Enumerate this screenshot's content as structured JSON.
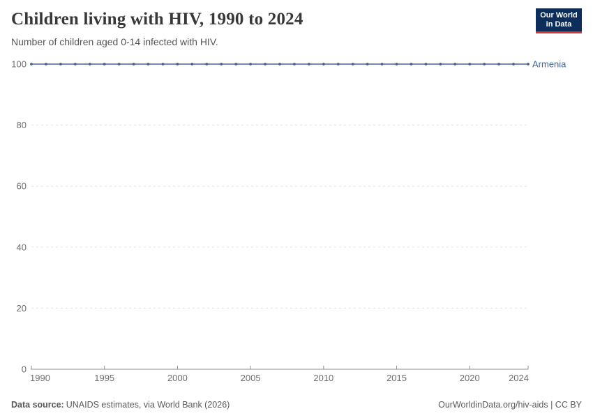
{
  "header": {
    "title": "Children living with HIV, 1990 to 2024",
    "subtitle": "Number of children aged 0-14 infected with HIV.",
    "logo": {
      "line1": "Our World",
      "line2": "in Data",
      "bg_color": "#0d2e5a",
      "accent_color": "#d8352a"
    }
  },
  "chart_data": {
    "type": "line",
    "title": "Children living with HIV, 1990 to 2024",
    "subtitle": "Number of children aged 0-14 infected with HIV.",
    "xlabel": "",
    "ylabel": "",
    "xlim": [
      1990,
      2024
    ],
    "ylim": [
      0,
      100
    ],
    "x_ticks": [
      1990,
      1995,
      2000,
      2005,
      2010,
      2015,
      2020,
      2024
    ],
    "y_ticks": [
      0,
      20,
      40,
      60,
      80,
      100
    ],
    "grid": "horizontal-dashed",
    "legend_position": "end-of-line-label",
    "grid_color": "#e3e3e3",
    "axis_color": "#8f8f8f",
    "tick_label_color": "#6e6e6e",
    "series": [
      {
        "name": "Armenia",
        "color": "#5b7cab",
        "marker_color": "#46618e",
        "label_color": "#3d649c",
        "x": [
          1990,
          1991,
          1992,
          1993,
          1994,
          1995,
          1996,
          1997,
          1998,
          1999,
          2000,
          2001,
          2002,
          2003,
          2004,
          2005,
          2006,
          2007,
          2008,
          2009,
          2010,
          2011,
          2012,
          2013,
          2014,
          2015,
          2016,
          2017,
          2018,
          2019,
          2020,
          2021,
          2022,
          2023,
          2024
        ],
        "values": [
          100,
          100,
          100,
          100,
          100,
          100,
          100,
          100,
          100,
          100,
          100,
          100,
          100,
          100,
          100,
          100,
          100,
          100,
          100,
          100,
          100,
          100,
          100,
          100,
          100,
          100,
          100,
          100,
          100,
          100,
          100,
          100,
          100,
          100,
          100
        ]
      }
    ]
  },
  "footer": {
    "datasource_label": "Data source:",
    "datasource_value": "UNAIDS estimates, via World Bank (2026)",
    "link": "OurWorldinData.org/hiv-aids | CC BY"
  }
}
